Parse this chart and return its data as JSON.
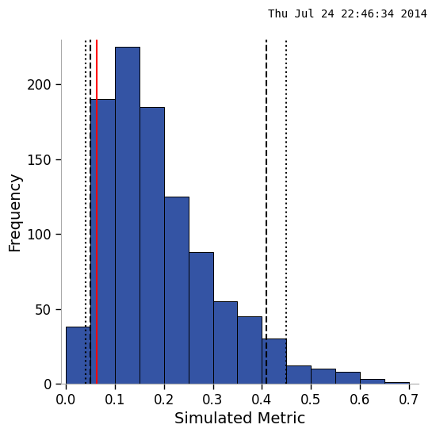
{
  "title": "Thu Jul 24 22:46:34 2014",
  "xlabel": "Simulated Metric",
  "ylabel": "Frequency",
  "bar_color": "#3454a4",
  "bar_edge_color": "#000000",
  "bar_heights": [
    38,
    190,
    225,
    185,
    125,
    88,
    55,
    45,
    30,
    12,
    10,
    8,
    3,
    1
  ],
  "bin_width": 0.05,
  "xlim": [
    -0.01,
    0.72
  ],
  "ylim": [
    0,
    230
  ],
  "yticks": [
    0,
    50,
    100,
    150,
    200
  ],
  "xticks": [
    0.0,
    0.1,
    0.2,
    0.3,
    0.4,
    0.5,
    0.6,
    0.7
  ],
  "red_line_x": 0.063,
  "dashed_line_left_x": 0.05,
  "dotted_line_left_x": 0.04,
  "dashed_line_right_x": 0.41,
  "dotted_line_right_x": 0.45,
  "line_color": "black",
  "red_color": "red",
  "title_fontsize": 10,
  "axis_label_fontsize": 14,
  "tick_fontsize": 12
}
